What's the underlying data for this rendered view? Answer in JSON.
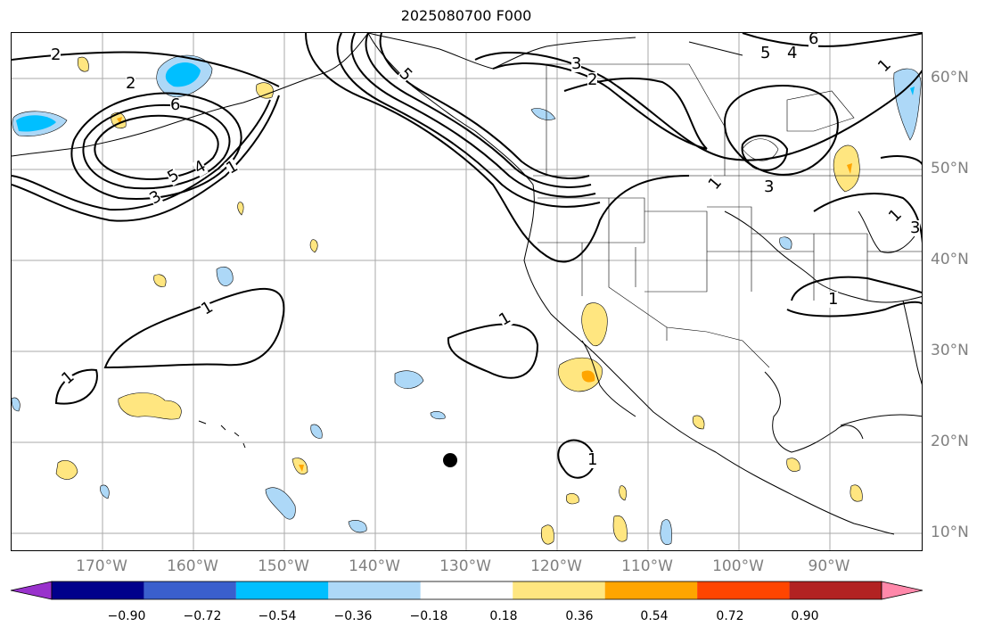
{
  "title": "2025080700 F000",
  "lon_labels": [
    "170°W",
    "160°W",
    "150°W",
    "140°W",
    "130°W",
    "120°W",
    "110°W",
    "100°W",
    "90°W"
  ],
  "lat_labels": [
    "60°N",
    "50°N",
    "40°N",
    "30°N",
    "20°N",
    "10°N"
  ],
  "colorbar": {
    "ticks": [
      "−0.90",
      "−0.72",
      "−0.54",
      "−0.36",
      "−0.18",
      "0.18",
      "0.36",
      "0.54",
      "0.72",
      "0.90"
    ],
    "colors": [
      "#9932cc",
      "#00008b",
      "#3a5fcd",
      "#00bfff",
      "#add8f7",
      "#ffffff",
      "#ffe680",
      "#ffa500",
      "#ff4500",
      "#b22222",
      "#ff88aa"
    ]
  },
  "contour_labels": [
    "2",
    "2",
    "6",
    "5",
    "4",
    "3",
    "1",
    "5",
    "1",
    "1",
    "1",
    "1",
    "3",
    "2",
    "6",
    "5",
    "4",
    "1",
    "1",
    "3",
    "3",
    "1",
    "1"
  ],
  "colors": {
    "grid": "#aaaaaa",
    "contour": "#000000",
    "marker": "#000000"
  }
}
